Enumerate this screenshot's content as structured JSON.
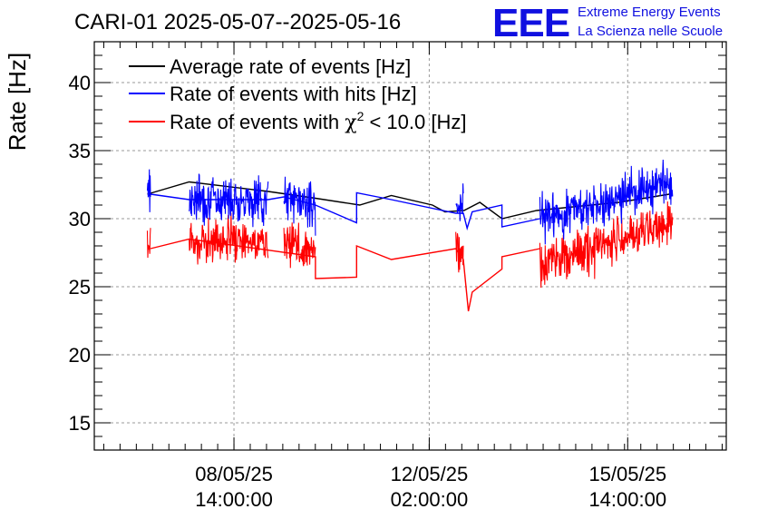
{
  "chart_data": {
    "type": "line",
    "title": "CARI-01 2025-05-07--2025-05-16",
    "xlabel": "",
    "ylabel": "Rate [Hz]",
    "ylim": [
      13,
      43
    ],
    "yticks": [
      15,
      20,
      25,
      30,
      35,
      40
    ],
    "xlim": [
      0,
      100
    ],
    "xticks": [
      {
        "x": 22.1,
        "line1": "08/05/25",
        "line2": "14:00:00"
      },
      {
        "x": 53.0,
        "line1": "12/05/25",
        "line2": "02:00:00"
      },
      {
        "x": 84.4,
        "line1": "15/05/25",
        "line2": "14:00:00"
      }
    ],
    "logo": {
      "big": "EEE",
      "line1": "Extreme Energy Events",
      "line2": "La Scienza nelle Scuole"
    },
    "colors": {
      "avg": "#000000",
      "hits": "#0000ff",
      "chi2": "#ff0000",
      "grid": "#9a9a9a"
    },
    "legend_entries": {
      "avg": "Average rate of events [Hz]",
      "hits": "Rate of events with hits [Hz]",
      "chi2_prefix": "Rate of events with ",
      "chi2_symbol": "χ",
      "chi2_sup": "2",
      "chi2_suffix": " < 10.0 [Hz]"
    },
    "series": [
      {
        "name": "Average rate of events [Hz]",
        "key": "avg",
        "x": [
          8.4,
          15,
          27.5,
          35,
          42,
          47,
          53.5,
          55.5,
          58.5,
          61,
          64.5,
          70,
          83,
          91
        ],
        "y": [
          31.8,
          32.7,
          32.0,
          31.5,
          31.0,
          31.7,
          31.0,
          30.5,
          30.6,
          31.2,
          30.0,
          30.6,
          31.2,
          31.8
        ]
      },
      {
        "name": "Rate of events with hits [Hz]",
        "key": "hits",
        "segments": [
          {
            "x0": 8.4,
            "x1": 8.9,
            "y0": 32.0,
            "y1": 31.8,
            "amp": 1.6,
            "seed": 3
          },
          {
            "x0": 15.0,
            "x1": 27.5,
            "y0": 31.5,
            "y1": 31.4,
            "amp": 1.5,
            "seed": 7
          },
          {
            "x0": 30.0,
            "x1": 35.0,
            "y0": 31.6,
            "y1": 31.0,
            "amp": 1.5,
            "seed": 11
          },
          {
            "x0": 57.2,
            "x1": 58.4,
            "y0": 31.2,
            "y1": 31.0,
            "amp": 1.3,
            "seed": 17
          },
          {
            "x0": 70.5,
            "x1": 91.5,
            "y0": 30.0,
            "y1": 32.6,
            "amp": 1.5,
            "seed": 23
          }
        ],
        "x": [
          8.9,
          15.0,
          27.5,
          30.0,
          35.0,
          41.5,
          41.5,
          47.0,
          57.2,
          58.4,
          59.0,
          59.8,
          64.5,
          64.5,
          70.5
        ],
        "y": [
          31.8,
          31.4,
          31.4,
          31.6,
          31.0,
          29.7,
          31.9,
          31.4,
          30.4,
          30.4,
          29.3,
          30.5,
          31.0,
          29.4,
          30.0
        ]
      },
      {
        "name": "Rate of events with χ2 < 10.0 [Hz]",
        "key": "chi2",
        "segments": [
          {
            "x0": 8.4,
            "x1": 8.9,
            "y0": 28.0,
            "y1": 27.8,
            "amp": 1.4,
            "seed": 5
          },
          {
            "x0": 15.0,
            "x1": 27.5,
            "y0": 28.3,
            "y1": 28.3,
            "amp": 1.5,
            "seed": 9
          },
          {
            "x0": 30.0,
            "x1": 35.0,
            "y0": 28.5,
            "y1": 27.5,
            "amp": 1.5,
            "seed": 13
          },
          {
            "x0": 57.2,
            "x1": 58.4,
            "y0": 28.2,
            "y1": 27.0,
            "amp": 1.3,
            "seed": 19
          },
          {
            "x0": 70.5,
            "x1": 91.5,
            "y0": 26.5,
            "y1": 29.8,
            "amp": 1.5,
            "seed": 29
          }
        ],
        "x": [
          8.9,
          15.0,
          35.0,
          35.0,
          41.5,
          41.5,
          47.0,
          57.2,
          58.4,
          59.2,
          59.8,
          64.5,
          64.5,
          70.5
        ],
        "y": [
          27.8,
          28.5,
          27.2,
          25.6,
          25.7,
          28.0,
          27.0,
          27.8,
          27.0,
          23.2,
          24.6,
          26.3,
          27.2,
          27.8
        ]
      }
    ]
  }
}
